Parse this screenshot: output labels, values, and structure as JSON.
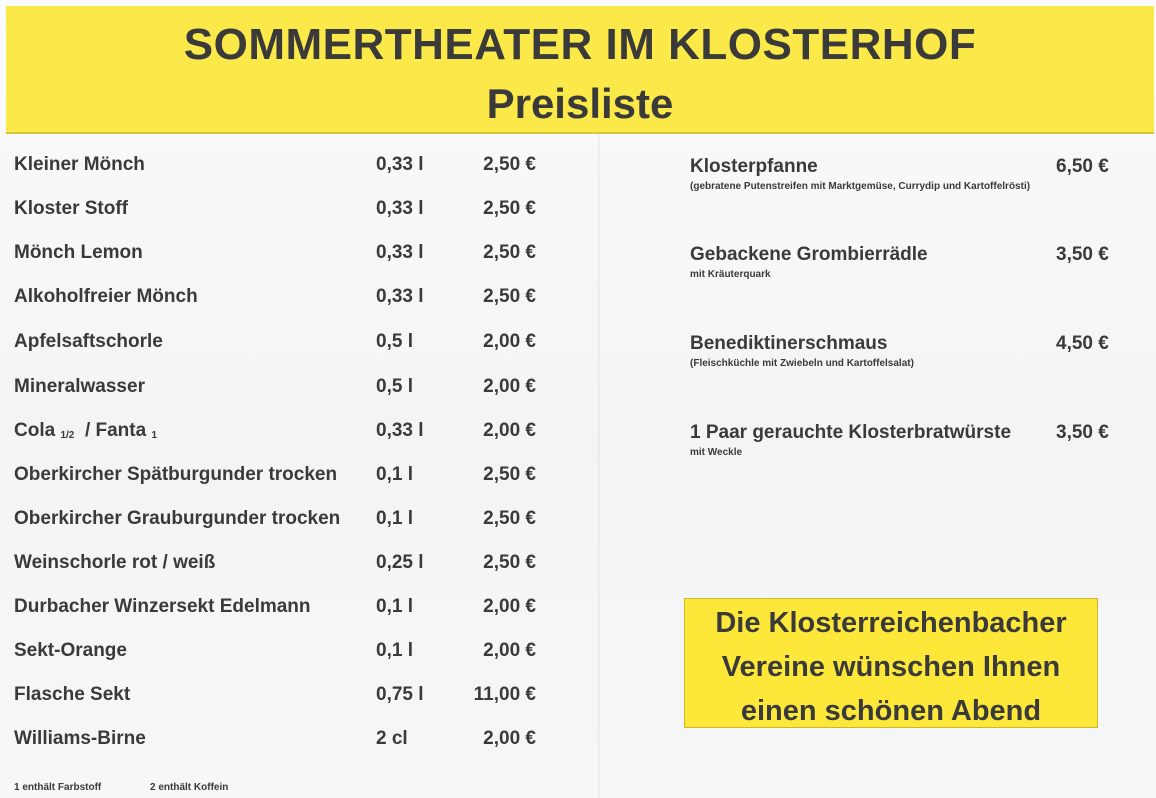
{
  "header": {
    "title": "SOMMERTHEATER IM KLOSTERHOF",
    "subtitle": "Preisliste"
  },
  "drinks": [
    {
      "name": "Kleiner Mönch",
      "volume": "0,33 l",
      "price": "2,50 €"
    },
    {
      "name": "Kloster Stoff",
      "volume": "0,33 l",
      "price": "2,50 €"
    },
    {
      "name": "Mönch Lemon",
      "volume": "0,33 l",
      "price": "2,50 €"
    },
    {
      "name": "Alkoholfreier Mönch",
      "volume": "0,33 l",
      "price": "2,50 €"
    },
    {
      "name": "Apfelsaftschorle",
      "volume": "0,5 l",
      "price": "2,00 €"
    },
    {
      "name": "Mineralwasser",
      "volume": "0,5 l",
      "price": "2,00 €"
    },
    {
      "name": "Cola",
      "name_sup": "1/2",
      "name_rest": "/ Fanta",
      "name_sup2": "1",
      "volume": "0,33 l",
      "price": "2,00 €"
    },
    {
      "name": "Oberkircher Spätburgunder trocken",
      "volume": "0,1 l",
      "price": "2,50 €"
    },
    {
      "name": "Oberkircher Grauburgunder trocken",
      "volume": "0,1 l",
      "price": "2,50 €"
    },
    {
      "name": "Weinschorle rot / weiß",
      "volume": "0,25 l",
      "price": "2,50 €"
    },
    {
      "name": "Durbacher Winzersekt Edelmann",
      "volume": "0,1 l",
      "price": "2,00 €"
    },
    {
      "name": "Sekt-Orange",
      "volume": "0,1 l",
      "price": "2,00 €"
    },
    {
      "name": "Flasche Sekt",
      "volume": "0,75 l",
      "price": "11,00 €"
    },
    {
      "name": "Williams-Birne",
      "volume": "2 cl",
      "price": "2,00 €"
    }
  ],
  "footnotes": {
    "note1": "1 enthält Farbstoff",
    "note2": "2 enthält Koffein"
  },
  "food": [
    {
      "name": "Klosterpfanne",
      "price": "6,50 €",
      "desc": "(gebratene Putenstreifen mit Marktgemüse, Currydip und Kartoffelrösti)"
    },
    {
      "name": "Gebackene Grombierrädle",
      "price": "3,50 €",
      "desc": "mit Kräuterquark"
    },
    {
      "name": "Benediktinerschmaus",
      "price": "4,50  €",
      "desc": "(Fleischküchle mit Zwiebeln und Kartoffelsalat)"
    },
    {
      "name": "1 Paar gerauchte Klosterbratwürste",
      "price": "3,50  €",
      "desc": "mit Weckle"
    }
  ],
  "wish": {
    "line1": "Die Klosterreichenbacher",
    "line2": "Vereine wünschen Ihnen",
    "line3": "einen schönen Abend"
  },
  "colors": {
    "header_bg": "#fbe94a",
    "box_bg": "#fde83a",
    "text": "#3a3a3a"
  }
}
